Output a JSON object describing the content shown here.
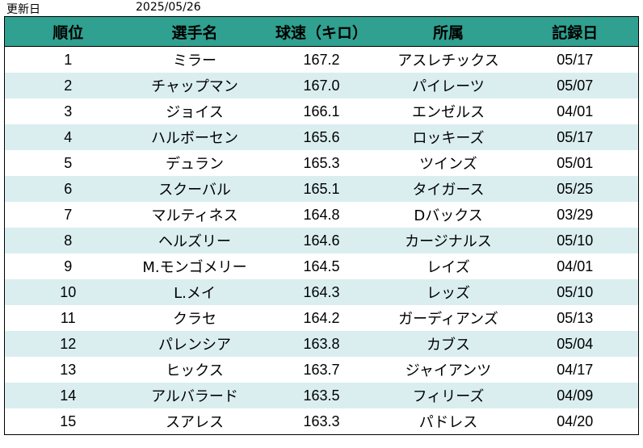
{
  "header": {
    "label": "更新日",
    "date": "2025/05/26"
  },
  "columns": [
    "順位",
    "選手名",
    "球速（キロ）",
    "所属",
    "記録日"
  ],
  "rows": [
    {
      "rank": "1",
      "name": "ミラー",
      "speed": "167.2",
      "team": "アスレチックス",
      "date": "05/17"
    },
    {
      "rank": "2",
      "name": "チャップマン",
      "speed": "167.0",
      "team": "パイレーツ",
      "date": "05/07"
    },
    {
      "rank": "3",
      "name": "ジョイス",
      "speed": "166.1",
      "team": "エンゼルス",
      "date": "04/01"
    },
    {
      "rank": "4",
      "name": "ハルボーセン",
      "speed": "165.6",
      "team": "ロッキーズ",
      "date": "05/17"
    },
    {
      "rank": "5",
      "name": "デュラン",
      "speed": "165.3",
      "team": "ツインズ",
      "date": "05/01"
    },
    {
      "rank": "6",
      "name": "スクーバル",
      "speed": "165.1",
      "team": "タイガース",
      "date": "05/25"
    },
    {
      "rank": "7",
      "name": "マルティネス",
      "speed": "164.8",
      "team": "Dバックス",
      "date": "03/29"
    },
    {
      "rank": "8",
      "name": "ヘルズリー",
      "speed": "164.6",
      "team": "カージナルス",
      "date": "05/10"
    },
    {
      "rank": "9",
      "name": "M.モンゴメリー",
      "speed": "164.5",
      "team": "レイズ",
      "date": "04/01"
    },
    {
      "rank": "10",
      "name": "L.メイ",
      "speed": "164.3",
      "team": "レッズ",
      "date": "05/10"
    },
    {
      "rank": "11",
      "name": "クラセ",
      "speed": "164.2",
      "team": "ガーディアンズ",
      "date": "05/13"
    },
    {
      "rank": "12",
      "name": "パレンシア",
      "speed": "163.8",
      "team": "カブス",
      "date": "05/04"
    },
    {
      "rank": "13",
      "name": "ヒックス",
      "speed": "163.7",
      "team": "ジャイアンツ",
      "date": "04/17"
    },
    {
      "rank": "14",
      "name": "アルバラード",
      "speed": "163.5",
      "team": "フィリーズ",
      "date": "04/09"
    },
    {
      "rank": "15",
      "name": "スアレス",
      "speed": "163.3",
      "team": "パドレス",
      "date": "04/20"
    }
  ]
}
